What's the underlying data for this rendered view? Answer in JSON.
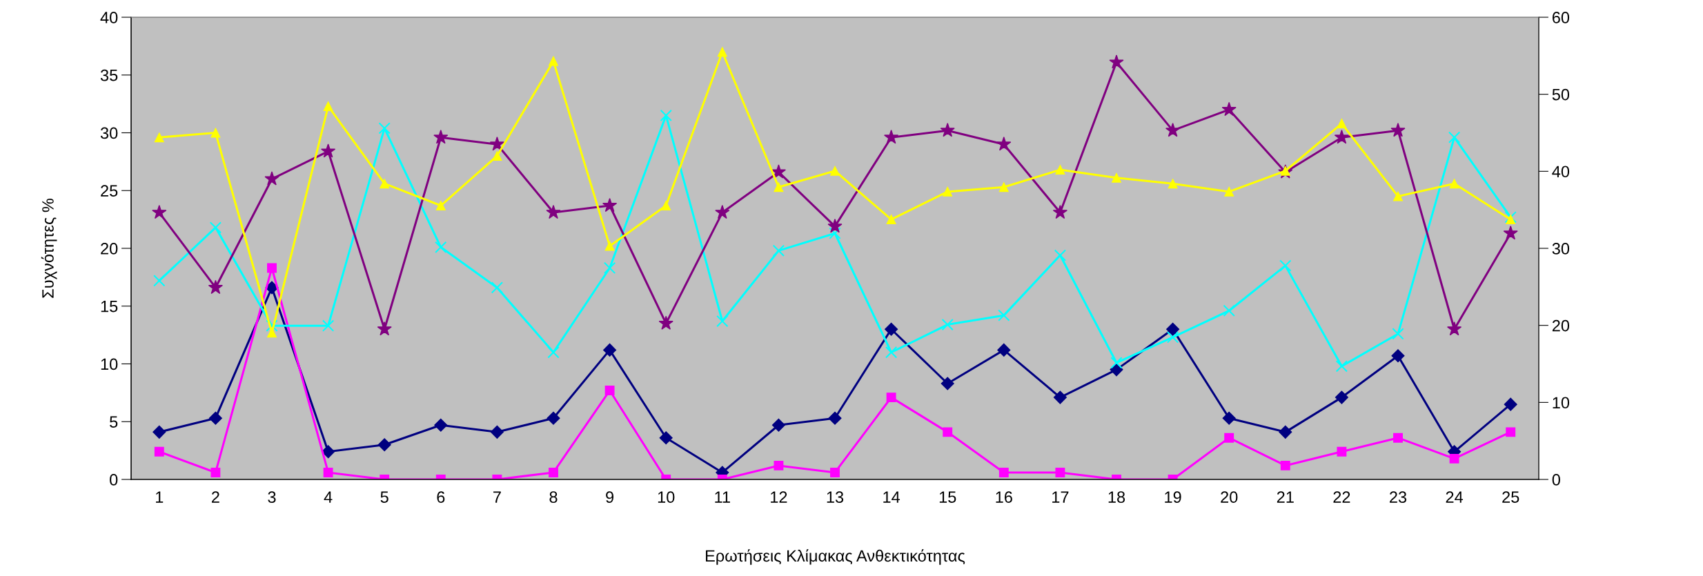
{
  "chart_data": {
    "type": "line",
    "xlabel": "Ερωτήσεις Κλίμακας Ανθεκτικότητας",
    "ylabel": "Συχνότητες %",
    "categories": [
      "1",
      "2",
      "3",
      "4",
      "5",
      "6",
      "7",
      "8",
      "9",
      "10",
      "11",
      "12",
      "13",
      "14",
      "15",
      "16",
      "17",
      "18",
      "19",
      "20",
      "21",
      "22",
      "23",
      "24",
      "25"
    ],
    "ylim": [
      0,
      40
    ],
    "yticks": [
      0,
      5,
      10,
      15,
      20,
      25,
      30,
      35,
      40
    ],
    "y2lim": [
      0,
      60
    ],
    "y2ticks": [
      0,
      10,
      20,
      30,
      40,
      50,
      60
    ],
    "grid": false,
    "legend": false,
    "series": [
      {
        "color": "#000080",
        "marker": "diamond",
        "values": [
          4.1,
          5.3,
          16.6,
          2.4,
          3.0,
          4.7,
          4.1,
          5.3,
          11.2,
          3.6,
          0.6,
          4.7,
          5.3,
          13.0,
          8.3,
          11.2,
          7.1,
          9.5,
          13.0,
          5.3,
          4.1,
          7.1,
          10.7,
          2.4,
          6.5
        ]
      },
      {
        "color": "#ff00ff",
        "marker": "square",
        "values": [
          2.4,
          0.6,
          18.3,
          0.6,
          0,
          0,
          0,
          0.6,
          7.7,
          0,
          0,
          1.2,
          0.6,
          7.1,
          4.1,
          0.6,
          0.6,
          0,
          0,
          3.6,
          1.2,
          2.4,
          3.6,
          1.8,
          4.1
        ]
      },
      {
        "color": "#00ffff",
        "marker": "cross",
        "values": [
          17.2,
          21.8,
          13.3,
          13.3,
          30.4,
          20.1,
          16.6,
          11.0,
          18.3,
          31.5,
          13.7,
          19.8,
          21.3,
          11.0,
          13.4,
          14.2,
          19.4,
          10.1,
          12.3,
          14.6,
          18.5,
          9.8,
          12.6,
          29.6,
          22.7
        ]
      },
      {
        "color": "#800080",
        "marker": "star",
        "values": [
          23.1,
          16.6,
          26.0,
          28.4,
          13.0,
          29.6,
          29.0,
          23.1,
          23.7,
          13.5,
          23.1,
          26.6,
          21.9,
          29.6,
          30.2,
          29.0,
          23.1,
          36.1,
          30.2,
          32.0,
          26.6,
          29.6,
          30.2,
          13.0,
          21.3
        ]
      },
      {
        "color": "#ffff00",
        "marker": "triangle",
        "values": [
          29.6,
          30.0,
          12.7,
          32.3,
          25.6,
          23.7,
          28.0,
          36.2,
          20.2,
          23.7,
          37.0,
          25.3,
          26.7,
          22.5,
          24.9,
          25.3,
          26.8,
          26.1,
          25.6,
          24.9,
          26.7,
          30.8,
          24.5,
          25.6,
          22.5
        ]
      }
    ]
  }
}
